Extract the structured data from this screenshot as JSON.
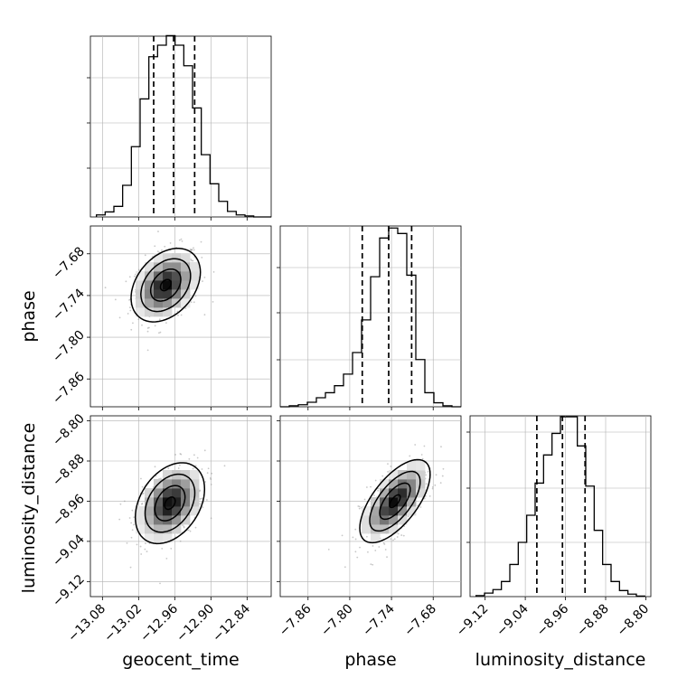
{
  "chart_data": [
    {
      "type": "histogram",
      "variable": "geocent_time",
      "xlim": [
        -13.1,
        -12.8
      ],
      "ylim": [
        0,
        0.036
      ],
      "bins": {
        "start": -13.09,
        "width": 0.0145,
        "counts": [
          0.0004,
          0.001,
          0.0021,
          0.0063,
          0.014,
          0.0235,
          0.0319,
          0.0342,
          0.0361,
          0.0342,
          0.0301,
          0.0217,
          0.0124,
          0.0066,
          0.0031,
          0.0011,
          0.0004,
          0.0002,
          0,
          0
        ]
      },
      "quantiles": [
        -12.995,
        -12.962,
        -12.927
      ],
      "xticks": [
        -13.08,
        -13.02,
        -12.96,
        -12.9,
        -12.84
      ],
      "xtick_labels": [
        "−13.08",
        "−13.02",
        "−12.96",
        "−12.90",
        "−12.84"
      ],
      "grid": true
    },
    {
      "type": "histogram",
      "variable": "phase",
      "xlim": [
        -7.9,
        -7.64
      ],
      "ylim": [
        0,
        0.036
      ],
      "bins": {
        "start": -7.9,
        "width": 0.013,
        "counts": [
          0,
          0.0002,
          0.0004,
          0.0009,
          0.0018,
          0.0028,
          0.0042,
          0.0065,
          0.0108,
          0.0173,
          0.0259,
          0.0336,
          0.0356,
          0.0345,
          0.0262,
          0.0094,
          0.0028,
          0.0008,
          0.0002,
          0
        ]
      },
      "quantiles": [
        -7.782,
        -7.744,
        -7.711
      ],
      "xticks": [
        -7.86,
        -7.8,
        -7.74,
        -7.68
      ],
      "xtick_labels": [
        "−7.86",
        "−7.80",
        "−7.74",
        "−7.68"
      ],
      "grid": true
    },
    {
      "type": "histogram",
      "variable": "luminosity_distance",
      "xlim": [
        -9.15,
        -8.79
      ],
      "ylim": [
        0,
        0.036
      ],
      "bins": {
        "start": -9.138,
        "width": 0.0168,
        "counts": [
          0.0002,
          0.0007,
          0.0014,
          0.003,
          0.0064,
          0.0108,
          0.0162,
          0.0226,
          0.0282,
          0.0325,
          0.0358,
          0.0358,
          0.03,
          0.022,
          0.0132,
          0.0064,
          0.003,
          0.0012,
          0.0005,
          0.0001
        ]
      },
      "quantiles": [
        -9.017,
        -8.966,
        -8.921
      ],
      "xticks": [
        -9.12,
        -9.04,
        -8.96,
        -8.88,
        -8.8
      ],
      "xtick_labels": [
        "−9.12",
        "−9.04",
        "−8.96",
        "−8.88",
        "−8.80"
      ],
      "grid": true
    },
    {
      "type": "heatmap",
      "x_variable": "geocent_time",
      "y_variable": "phase",
      "xlim": [
        -13.1,
        -12.8
      ],
      "ylim": [
        -7.9,
        -7.64
      ],
      "center": [
        -12.975,
        -7.725
      ],
      "sigma": [
        0.025,
        0.023
      ],
      "correlation": 0.35,
      "ylabel": "phase",
      "yticks": [
        -7.68,
        -7.74,
        -7.8,
        -7.86
      ],
      "ytick_labels": [
        "−7.68",
        "−7.74",
        "−7.80",
        "−7.86"
      ],
      "grid": true
    },
    {
      "type": "heatmap",
      "x_variable": "geocent_time",
      "y_variable": "luminosity_distance",
      "xlim": [
        -13.1,
        -12.8
      ],
      "ylim": [
        -9.15,
        -8.79
      ],
      "center": [
        -12.968,
        -8.964
      ],
      "sigma": [
        0.025,
        0.035
      ],
      "correlation": 0.35,
      "ylabel": "luminosity_distance",
      "xlabel": "geocent_time",
      "xticks": [
        -13.08,
        -13.02,
        -12.96,
        -12.9,
        -12.84
      ],
      "xtick_labels": [
        "−13.08",
        "−13.02",
        "−12.96",
        "−12.90",
        "−12.84"
      ],
      "yticks": [
        -8.8,
        -8.88,
        -8.96,
        -9.04,
        -9.12
      ],
      "ytick_labels": [
        "−8.80",
        "−8.88",
        "−8.96",
        "−9.04",
        "−9.12"
      ],
      "grid": true
    },
    {
      "type": "heatmap",
      "x_variable": "phase",
      "y_variable": "luminosity_distance",
      "xlim": [
        -7.9,
        -7.64
      ],
      "ylim": [
        -9.15,
        -8.79
      ],
      "center": [
        -7.735,
        -8.96
      ],
      "sigma": [
        0.022,
        0.036
      ],
      "correlation": 0.65,
      "xlabel": "phase",
      "xticks": [
        -7.86,
        -7.8,
        -7.74,
        -7.68
      ],
      "xtick_labels": [
        "−7.86",
        "−7.80",
        "−7.74",
        "−7.68"
      ],
      "grid": true
    }
  ],
  "labels": {
    "geocent_time": "geocent_time",
    "phase": "phase",
    "luminosity_distance": "luminosity_distance"
  }
}
